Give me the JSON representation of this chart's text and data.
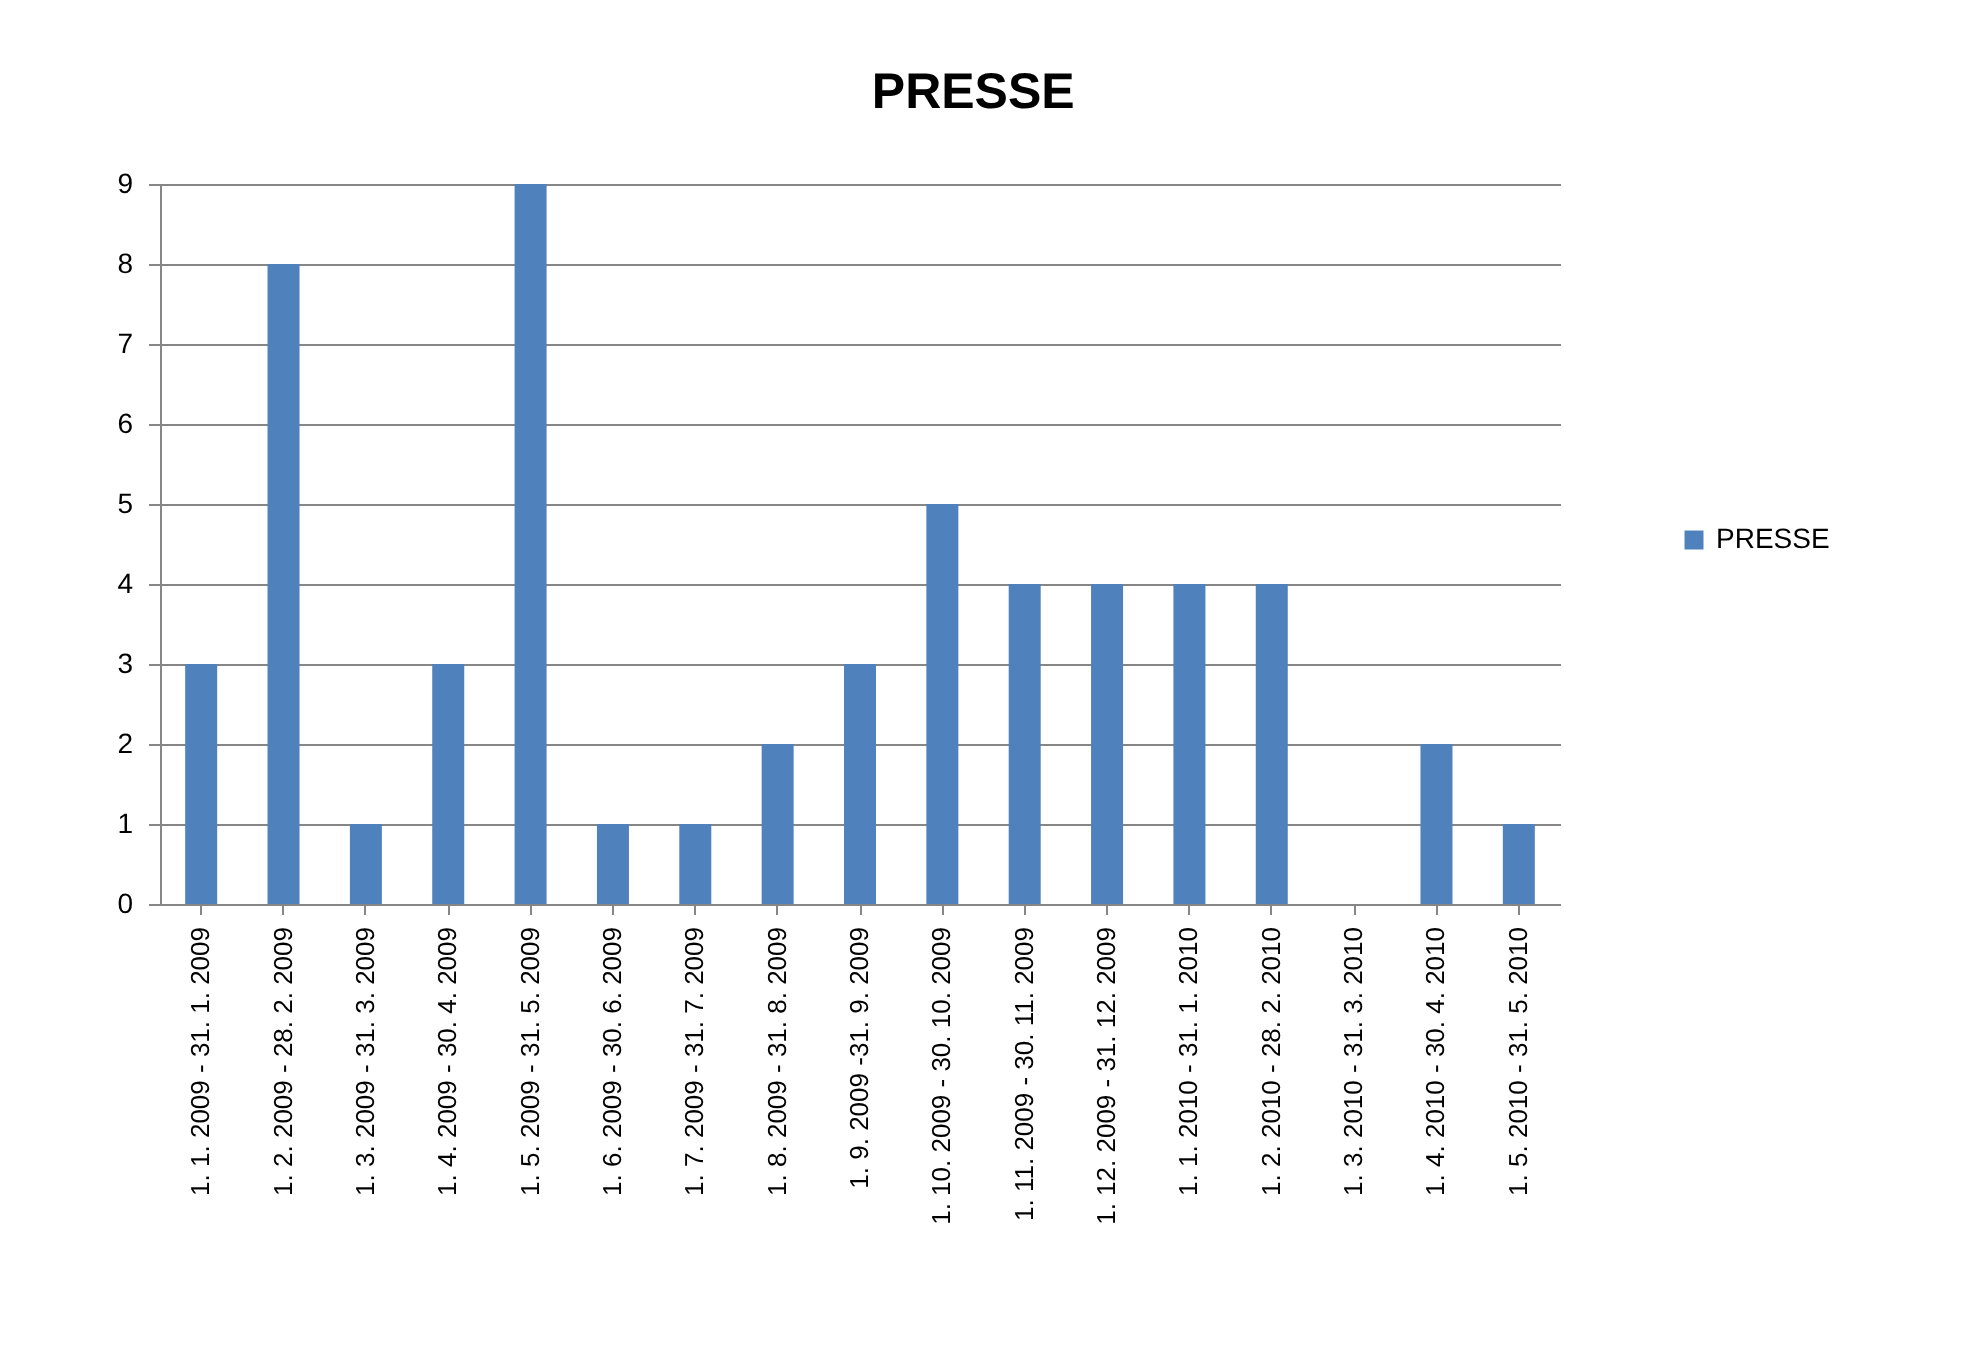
{
  "chart_data": {
    "type": "bar",
    "title": "PRESSE",
    "categories": [
      "1. 1. 2009 - 31. 1. 2009",
      "1. 2. 2009 - 28. 2. 2009",
      "1. 3. 2009 - 31. 3. 2009",
      "1. 4. 2009 - 30. 4. 2009",
      "1. 5. 2009 - 31. 5. 2009",
      "1. 6. 2009 - 30. 6. 2009",
      "1. 7. 2009 - 31. 7. 2009",
      "1. 8. 2009 - 31. 8. 2009",
      "1. 9. 2009 -31. 9. 2009",
      "1. 10. 2009 - 30. 10. 2009",
      "1. 11. 2009 - 30. 11. 2009",
      "1. 12. 2009 - 31. 12. 2009",
      "1. 1. 2010 - 31. 1. 2010",
      "1. 2. 2010 - 28. 2. 2010",
      "1. 3. 2010 - 31. 3. 2010",
      "1. 4. 2010 - 30. 4. 2010",
      "1. 5. 2010 - 31. 5. 2010"
    ],
    "series": [
      {
        "name": "PRESSE",
        "color": "#4f81bd",
        "values": [
          3,
          8,
          1,
          3,
          9,
          1,
          1,
          2,
          3,
          5,
          4,
          4,
          4,
          4,
          0,
          2,
          1
        ]
      }
    ],
    "ylim": [
      0,
      9
    ],
    "yticks": [
      0,
      1,
      2,
      3,
      4,
      5,
      6,
      7,
      8,
      9
    ],
    "grid": "y",
    "legend": "right"
  }
}
